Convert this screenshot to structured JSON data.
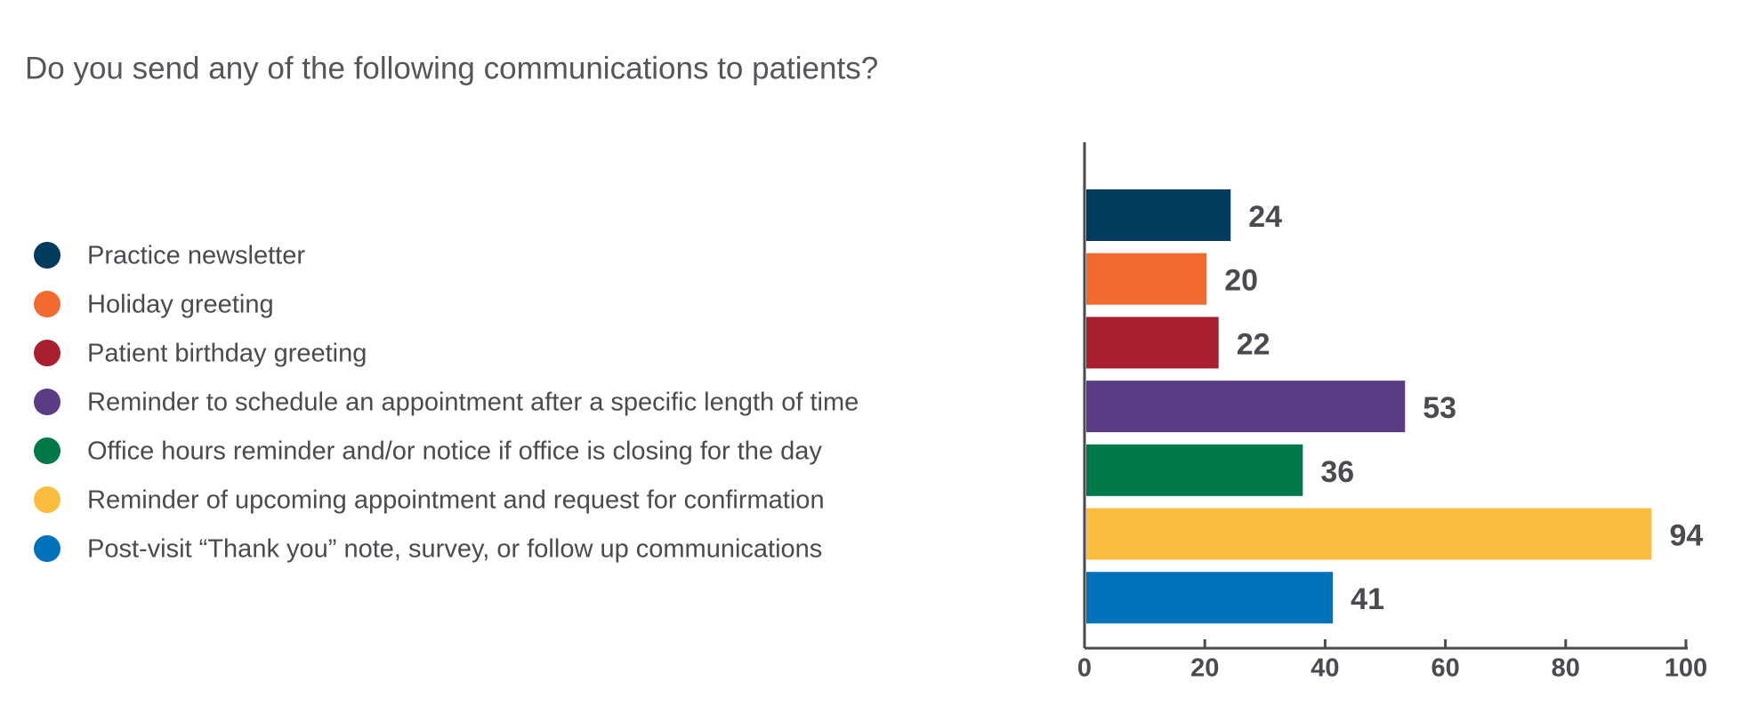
{
  "chart_data": {
    "type": "bar",
    "orientation": "horizontal",
    "title": "Do you send any of the following communications to patients?",
    "categories": [
      "Practice newsletter",
      "Holiday greeting",
      "Patient birthday greeting",
      "Reminder to schedule an appointment after a specific length of time",
      "Office hours reminder and/or notice if office is closing for the day",
      "Reminder of upcoming appointment and request for confirmation",
      "Post-visit “Thank you” note, survey, or follow up communications"
    ],
    "values": [
      24,
      20,
      22,
      53,
      36,
      94,
      41
    ],
    "colors": [
      "#003a5c",
      "#f26a2e",
      "#a81f2f",
      "#5a3c85",
      "#00784a",
      "#fbbd3e",
      "#0072bc"
    ],
    "xlim": [
      0,
      100
    ],
    "xticks": [
      0,
      20,
      40,
      60,
      80,
      100
    ],
    "grid": false
  }
}
